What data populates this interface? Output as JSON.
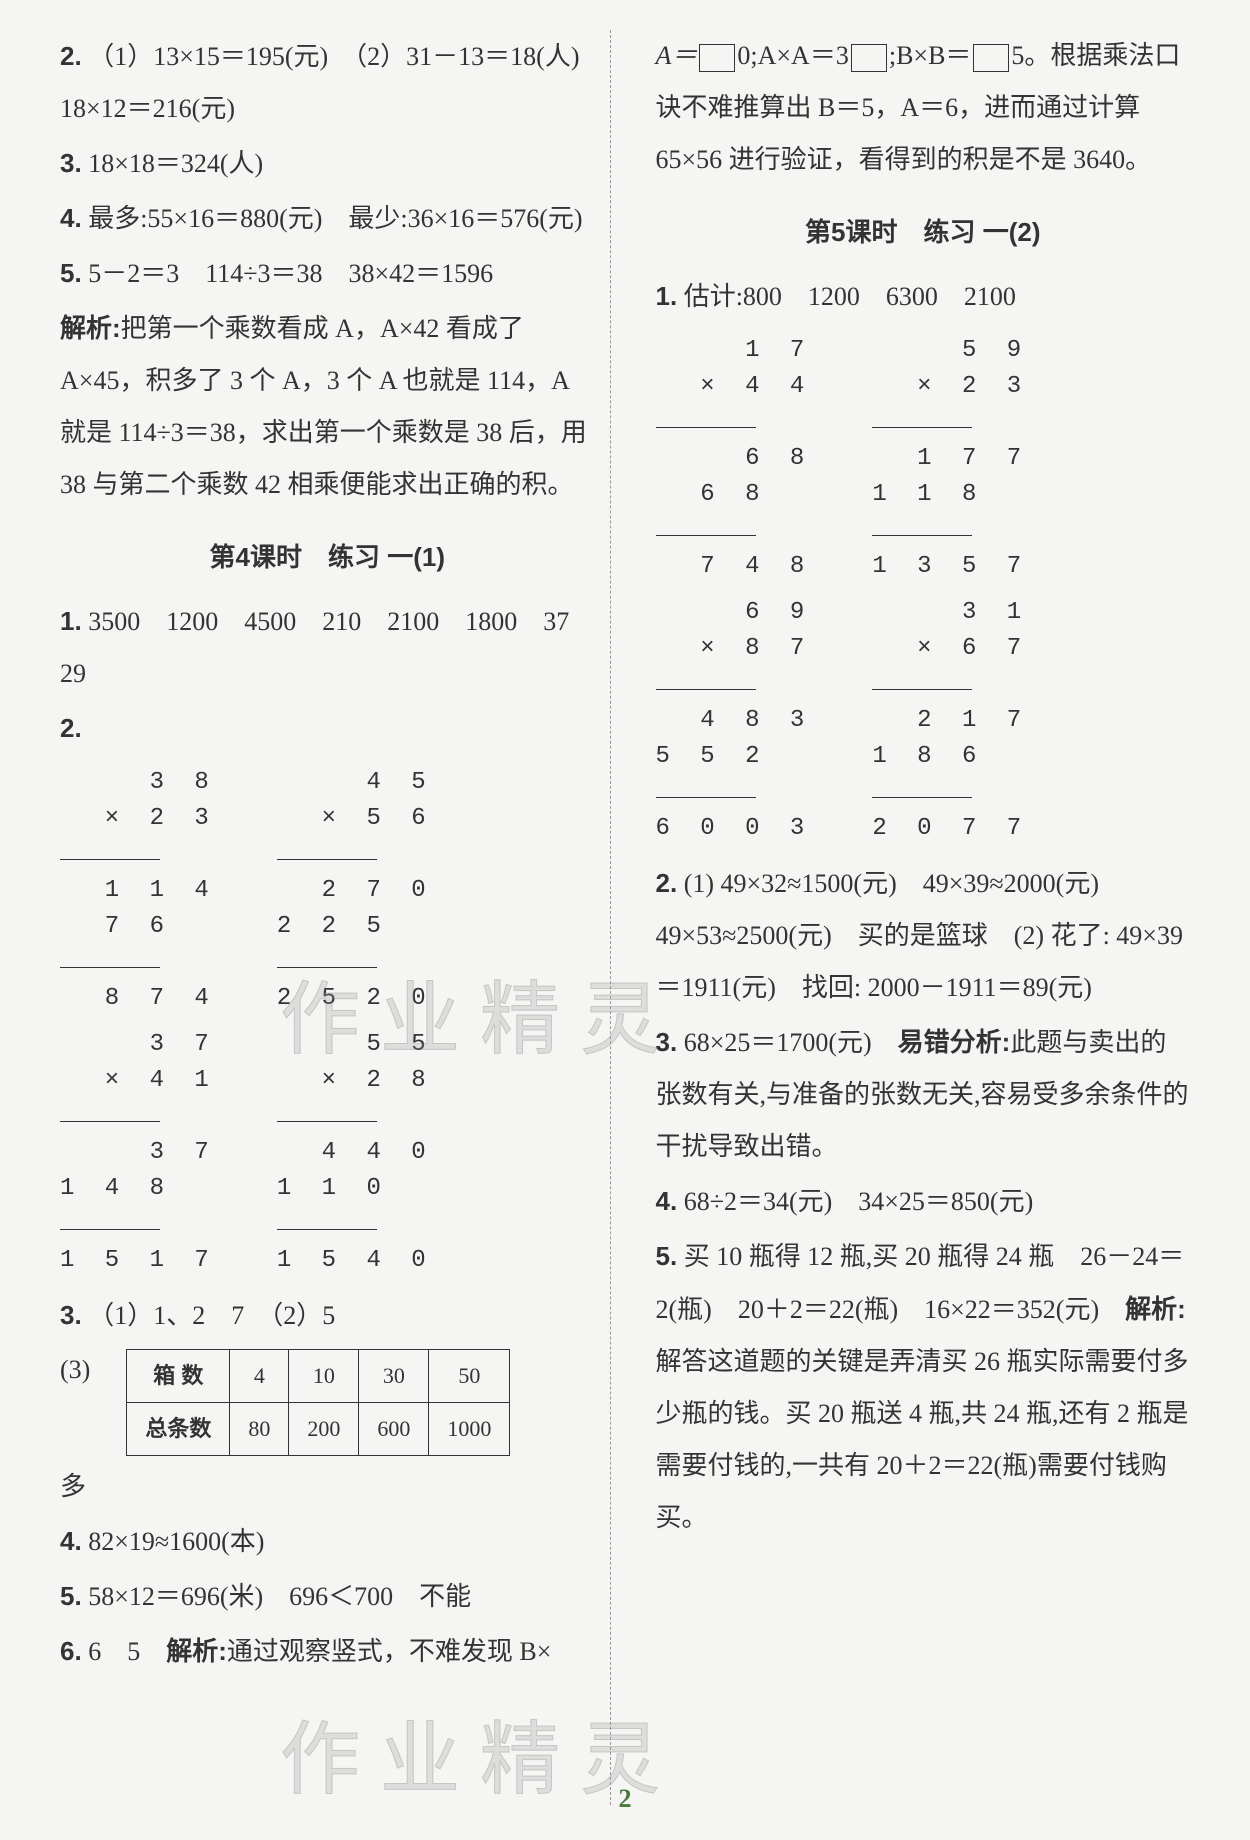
{
  "left": {
    "q2": {
      "num": "2.",
      "text": "（1）13×15＝195(元)　（2）31－13＝18(人)　18×12＝216(元)"
    },
    "q3": {
      "num": "3.",
      "text": "18×18＝324(人)"
    },
    "q4": {
      "num": "4.",
      "text": "最多:55×16＝880(元)　最少:36×16＝576(元)"
    },
    "q5": {
      "num": "5.",
      "text": "5－2＝3　114÷3＝38　38×42＝1596"
    },
    "analysis5": {
      "label": "解析:",
      "text": "把第一个乘数看成 A，A×42 看成了 A×45，积多了 3 个 A，3 个 A 也就是 114，A 就是 114÷3＝38，求出第一个乘数是 38 后，用 38 与第二个乘数 42 相乘便能求出正确的积。"
    },
    "section4_title": "第4课时　练习 一(1)",
    "s4_q1": {
      "num": "1.",
      "text": "3500　1200　4500　210　2100　1800　37　29"
    },
    "s4_q2num": "2.",
    "calc1": {
      "a": "    3 8",
      "b": "  × 2 3",
      "c": "  1 1 4",
      "d": "  7 6  ",
      "e": "  8 7 4"
    },
    "calc2": {
      "a": "    4 5",
      "b": "  × 5 6",
      "c": "  2 7 0",
      "d": "2 2 5  ",
      "e": "2 5 2 0"
    },
    "calc3": {
      "a": "    3 7",
      "b": "  × 4 1",
      "c": "    3 7",
      "d": "1 4 8  ",
      "e": "1 5 1 7"
    },
    "calc4": {
      "a": "    5 5",
      "b": "  × 2 8",
      "c": "  4 4 0",
      "d": "1 1 0  ",
      "e": "1 5 4 0"
    },
    "s4_q3": {
      "num": "3.",
      "text": "（1）1、2　7　（2）5"
    },
    "s4_q3_sub": "(3)",
    "table": {
      "headers": [
        "箱 数",
        "4",
        "10",
        "30",
        "50"
      ],
      "row": [
        "总条数",
        "80",
        "200",
        "600",
        "1000"
      ]
    },
    "s4_q3_extra": "多",
    "s4_q4": {
      "num": "4.",
      "text": "82×19≈1600(本)"
    },
    "s4_q5": {
      "num": "5.",
      "text": "58×12＝696(米)　696＜700　不能"
    },
    "s4_q6": {
      "num": "6.",
      "text1": "6　5　",
      "label": "解析:",
      "text2": "通过观察竖式，不难发现 B×"
    }
  },
  "right": {
    "intro": {
      "a": "A＝",
      "b": "0;A×A＝3",
      "c": ";B×B＝",
      "d": "5。根据乘法口诀不难推算出 B＝5，A＝6，进而通过计算 65×56 进行验证，看得到的积是不是 3640。"
    },
    "section5_title": "第5课时　练习 一(2)",
    "s5_q1": {
      "num": "1.",
      "text": "估计:800　1200　6300　2100"
    },
    "calc5": {
      "a": "    1 7",
      "b": "  × 4 4",
      "c": "    6 8",
      "d": "  6 8  ",
      "e": "  7 4 8"
    },
    "calc6": {
      "a": "    5 9",
      "b": "  × 2 3",
      "c": "  1 7 7",
      "d": "1 1 8  ",
      "e": "1 3 5 7"
    },
    "calc7": {
      "a": "    6 9",
      "b": "  × 8 7",
      "c": "  4 8 3",
      "d": "5 5 2  ",
      "e": "6 0 0 3"
    },
    "calc8": {
      "a": "    3 1",
      "b": "  × 6 7",
      "c": "  2 1 7",
      "d": "1 8 6  ",
      "e": "2 0 7 7"
    },
    "s5_q2": {
      "num": "2.",
      "text": "(1) 49×32≈1500(元)　49×39≈2000(元)　49×53≈2500(元)　买的是篮球　(2) 花了: 49×39＝1911(元)　找回: 2000－1911＝89(元)"
    },
    "s5_q3": {
      "num": "3.",
      "text1": "68×25＝1700(元)　",
      "label": "易错分析:",
      "text2": "此题与卖出的张数有关,与准备的张数无关,容易受多余条件的干扰导致出错。"
    },
    "s5_q4": {
      "num": "4.",
      "text": "68÷2＝34(元)　34×25＝850(元)"
    },
    "s5_q5": {
      "num": "5.",
      "text1": "买 10 瓶得 12 瓶,买 20 瓶得 24 瓶　26－24＝2(瓶)　20＋2＝22(瓶)　16×22＝352(元)　",
      "label": "解析:",
      "text2": "解答这道题的关键是弄清买 26 瓶实际需要付多少瓶的钱。买 20 瓶送 4 瓶,共 24 瓶,还有 2 瓶是需要付钱的,一共有 20＋2＝22(瓶)需要付钱购买。"
    }
  },
  "watermark": "作业精灵",
  "page_number": "2"
}
